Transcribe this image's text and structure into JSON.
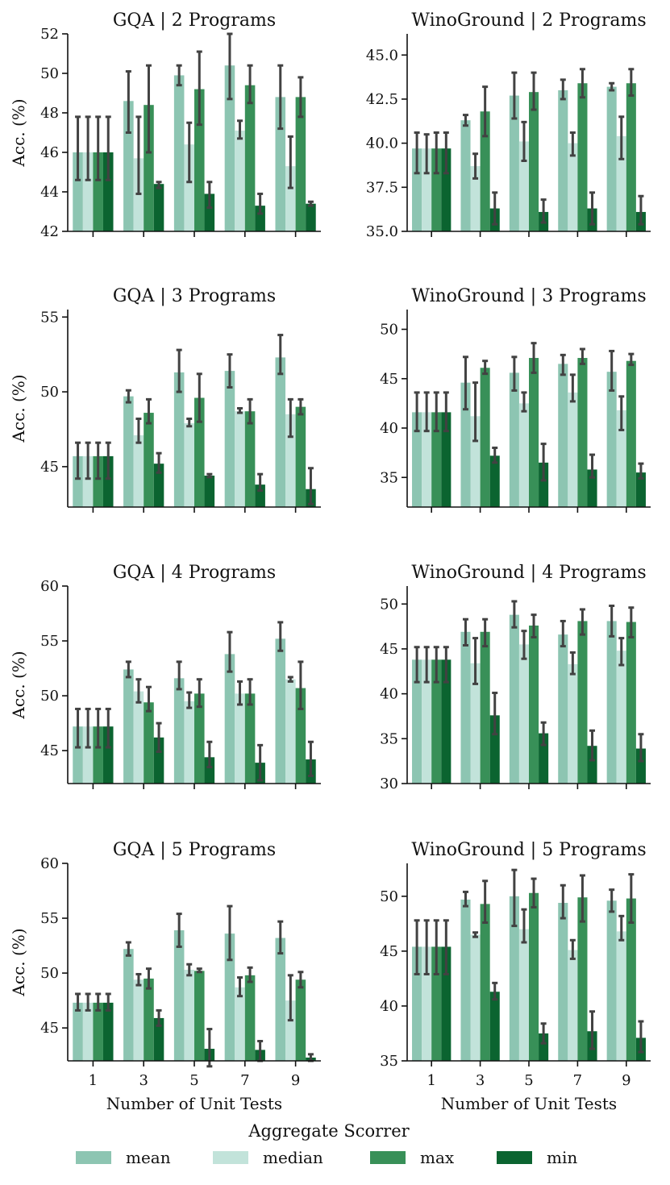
{
  "chart_data": {
    "type": "bar",
    "x_label": "Number of Unit Tests",
    "y_label": "Acc. (%)",
    "categories": [
      "1",
      "3",
      "5",
      "7",
      "9"
    ],
    "legend": {
      "title": "Aggregate Scorrer",
      "placement": "bottom",
      "entries": [
        "mean",
        "median",
        "max",
        "min"
      ]
    },
    "colors": {
      "mean": "#8dc5b2",
      "median": "#c2e3da",
      "max": "#389058",
      "min": "#0b6430",
      "error": "#424242"
    },
    "panels": [
      {
        "title": "GQA | 2 Programs",
        "ylim": [
          42,
          52
        ],
        "yticks": [
          42,
          44,
          46,
          48,
          50,
          52
        ],
        "ytick_labels": [
          "42",
          "44",
          "46",
          "48",
          "50",
          "52"
        ],
        "series": [
          {
            "name": "mean",
            "values": [
              46.0,
              48.6,
              49.9,
              50.4,
              48.8
            ],
            "err_low": [
              44.6,
              47.0,
              49.4,
              48.7,
              47.2
            ],
            "err_high": [
              47.8,
              50.1,
              50.4,
              52.0,
              50.4
            ]
          },
          {
            "name": "median",
            "values": [
              46.0,
              45.7,
              46.4,
              47.1,
              45.3
            ],
            "err_low": [
              44.6,
              43.9,
              44.5,
              46.7,
              44.2
            ],
            "err_high": [
              47.8,
              47.8,
              47.5,
              47.6,
              46.8
            ]
          },
          {
            "name": "max",
            "values": [
              46.0,
              48.4,
              49.2,
              49.4,
              48.8
            ],
            "err_low": [
              44.6,
              46.0,
              47.4,
              48.5,
              47.8
            ],
            "err_high": [
              47.8,
              50.4,
              51.1,
              50.4,
              49.8
            ]
          },
          {
            "name": "min",
            "values": [
              46.0,
              44.4,
              43.9,
              43.3,
              43.4
            ],
            "err_low": [
              44.6,
              44.2,
              43.2,
              42.9,
              43.3
            ],
            "err_high": [
              47.8,
              44.5,
              44.5,
              43.9,
              43.5
            ]
          }
        ]
      },
      {
        "title": "WinoGround | 2 Programs",
        "ylim": [
          35,
          46.2
        ],
        "yticks": [
          35,
          37.5,
          40,
          42.5,
          45
        ],
        "ytick_labels": [
          "35.0",
          "37.5",
          "40.0",
          "42.5",
          "45.0"
        ],
        "series": [
          {
            "name": "mean",
            "values": [
              39.7,
              41.3,
              42.7,
              43.0,
              43.2
            ],
            "err_low": [
              38.3,
              41.0,
              41.4,
              42.5,
              43.0
            ],
            "err_high": [
              40.6,
              41.6,
              44.0,
              43.6,
              43.4
            ]
          },
          {
            "name": "median",
            "values": [
              39.7,
              38.7,
              40.1,
              40.0,
              40.4
            ],
            "err_low": [
              38.3,
              38.0,
              39.0,
              39.3,
              39.1
            ],
            "err_high": [
              40.5,
              39.4,
              41.2,
              40.6,
              41.5
            ]
          },
          {
            "name": "max",
            "values": [
              39.7,
              41.8,
              42.9,
              43.4,
              43.4
            ],
            "err_low": [
              38.3,
              40.4,
              41.9,
              42.6,
              42.7
            ],
            "err_high": [
              40.6,
              43.2,
              44.0,
              44.2,
              44.2
            ]
          },
          {
            "name": "min",
            "values": [
              39.7,
              36.3,
              36.1,
              36.3,
              36.1
            ],
            "err_low": [
              38.3,
              35.4,
              35.5,
              35.4,
              35.4
            ],
            "err_high": [
              40.6,
              37.2,
              36.8,
              37.2,
              37.0
            ]
          }
        ]
      },
      {
        "title": "GQA | 3 Programs",
        "ylim": [
          42.3,
          55.5
        ],
        "yticks": [
          45,
          50,
          55
        ],
        "ytick_labels": [
          "45",
          "50",
          "55"
        ],
        "series": [
          {
            "name": "mean",
            "values": [
              45.7,
              49.7,
              51.3,
              51.4,
              52.3
            ],
            "err_low": [
              44.2,
              49.3,
              50.0,
              50.3,
              51.2
            ],
            "err_high": [
              46.6,
              50.1,
              52.8,
              52.5,
              53.8
            ]
          },
          {
            "name": "median",
            "values": [
              45.7,
              47.1,
              47.9,
              48.7,
              48.5
            ],
            "err_low": [
              44.2,
              46.6,
              47.7,
              48.6,
              47.0
            ],
            "err_high": [
              46.6,
              48.2,
              48.2,
              48.9,
              49.5
            ]
          },
          {
            "name": "max",
            "values": [
              45.7,
              48.6,
              49.6,
              48.7,
              49.0
            ],
            "err_low": [
              44.2,
              47.9,
              48.0,
              47.9,
              48.5
            ],
            "err_high": [
              46.6,
              49.5,
              51.2,
              49.5,
              49.5
            ]
          },
          {
            "name": "min",
            "values": [
              45.7,
              45.2,
              44.4,
              43.8,
              43.5
            ],
            "err_low": [
              44.2,
              44.6,
              44.3,
              43.4,
              42.5
            ],
            "err_high": [
              46.6,
              45.9,
              44.5,
              44.5,
              44.9
            ]
          }
        ]
      },
      {
        "title": "WinoGround | 3 Programs",
        "ylim": [
          32,
          52
        ],
        "yticks": [
          35,
          40,
          45,
          50
        ],
        "ytick_labels": [
          "35",
          "40",
          "45",
          "50"
        ],
        "series": [
          {
            "name": "mean",
            "values": [
              41.6,
              44.6,
              45.6,
              46.5,
              45.7
            ],
            "err_low": [
              39.7,
              41.9,
              43.8,
              45.4,
              43.8
            ],
            "err_high": [
              43.6,
              47.2,
              47.2,
              47.4,
              47.8
            ]
          },
          {
            "name": "median",
            "values": [
              41.6,
              41.2,
              42.5,
              43.6,
              41.8
            ],
            "err_low": [
              39.7,
              38.7,
              41.7,
              42.7,
              39.8
            ],
            "err_high": [
              43.6,
              44.6,
              43.6,
              45.4,
              43.2
            ]
          },
          {
            "name": "max",
            "values": [
              41.6,
              46.1,
              47.1,
              47.1,
              46.8
            ],
            "err_low": [
              39.7,
              45.5,
              45.6,
              46.5,
              46.4
            ],
            "err_high": [
              43.6,
              46.8,
              48.6,
              48.0,
              47.5
            ]
          },
          {
            "name": "min",
            "values": [
              41.6,
              37.2,
              36.5,
              35.8,
              35.5
            ],
            "err_low": [
              39.7,
              36.5,
              34.7,
              35.0,
              34.9
            ],
            "err_high": [
              43.6,
              38.0,
              38.4,
              37.3,
              36.4
            ]
          }
        ]
      },
      {
        "title": "GQA | 4 Programs",
        "ylim": [
          42,
          60
        ],
        "yticks": [
          45,
          50,
          55,
          60
        ],
        "ytick_labels": [
          "45",
          "50",
          "55",
          "60"
        ],
        "series": [
          {
            "name": "mean",
            "values": [
              47.2,
              52.4,
              51.6,
              53.8,
              55.2
            ],
            "err_low": [
              45.3,
              51.7,
              50.6,
              52.2,
              54.1
            ],
            "err_high": [
              48.8,
              53.1,
              53.1,
              55.8,
              56.7
            ]
          },
          {
            "name": "median",
            "values": [
              47.2,
              50.4,
              49.5,
              50.2,
              51.5
            ],
            "err_low": [
              45.3,
              49.4,
              48.9,
              49.2,
              51.3
            ],
            "err_high": [
              48.8,
              51.5,
              50.3,
              51.3,
              51.7
            ]
          },
          {
            "name": "max",
            "values": [
              47.2,
              49.4,
              50.2,
              50.2,
              50.7
            ],
            "err_low": [
              45.3,
              48.6,
              49.0,
              49.2,
              48.8
            ],
            "err_high": [
              48.8,
              50.8,
              51.5,
              51.5,
              53.1
            ]
          },
          {
            "name": "min",
            "values": [
              47.2,
              46.2,
              44.4,
              43.9,
              44.2
            ],
            "err_low": [
              45.3,
              44.9,
              43.5,
              42.3,
              42.7
            ],
            "err_high": [
              48.8,
              47.5,
              45.8,
              45.5,
              45.8
            ]
          }
        ]
      },
      {
        "title": "WinoGround | 4 Programs",
        "ylim": [
          30,
          52
        ],
        "yticks": [
          30,
          35,
          40,
          45,
          50
        ],
        "ytick_labels": [
          "30",
          "35",
          "40",
          "45",
          "50"
        ],
        "series": [
          {
            "name": "mean",
            "values": [
              43.8,
              46.9,
              48.8,
              46.6,
              48.1
            ],
            "err_low": [
              41.3,
              45.4,
              47.4,
              45.3,
              46.4
            ],
            "err_high": [
              45.2,
              48.3,
              50.3,
              48.1,
              49.8
            ]
          },
          {
            "name": "median",
            "values": [
              43.8,
              43.4,
              45.5,
              43.3,
              44.8
            ],
            "err_low": [
              41.3,
              41.1,
              43.9,
              42.2,
              43.2
            ],
            "err_high": [
              45.2,
              46.2,
              47.0,
              44.6,
              46.2
            ]
          },
          {
            "name": "max",
            "values": [
              43.8,
              46.9,
              47.6,
              48.1,
              48.0
            ],
            "err_low": [
              41.3,
              45.3,
              46.3,
              46.6,
              46.3
            ],
            "err_high": [
              45.2,
              48.3,
              48.8,
              49.4,
              49.6
            ]
          },
          {
            "name": "min",
            "values": [
              43.8,
              37.6,
              35.6,
              34.2,
              33.9
            ],
            "err_low": [
              41.3,
              35.5,
              34.3,
              32.6,
              32.5
            ],
            "err_high": [
              45.2,
              40.1,
              36.8,
              35.9,
              35.5
            ]
          }
        ]
      },
      {
        "title": "GQA | 5 Programs",
        "ylim": [
          42,
          60
        ],
        "yticks": [
          45,
          50,
          55,
          60
        ],
        "ytick_labels": [
          "45",
          "50",
          "55",
          "60"
        ],
        "series": [
          {
            "name": "mean",
            "values": [
              47.3,
              52.2,
              53.9,
              53.6,
              53.2
            ],
            "err_low": [
              46.6,
              51.6,
              52.4,
              51.2,
              51.8
            ],
            "err_high": [
              48.1,
              52.8,
              55.4,
              56.1,
              54.7
            ]
          },
          {
            "name": "median",
            "values": [
              47.3,
              49.4,
              50.3,
              48.7,
              47.5
            ],
            "err_low": [
              46.6,
              48.9,
              49.8,
              47.9,
              45.7
            ],
            "err_high": [
              48.1,
              49.9,
              50.8,
              49.6,
              49.8
            ]
          },
          {
            "name": "max",
            "values": [
              47.3,
              49.5,
              50.2,
              49.8,
              49.4
            ],
            "err_low": [
              46.6,
              48.6,
              50.1,
              49.2,
              48.7
            ],
            "err_high": [
              48.1,
              50.4,
              50.4,
              50.5,
              50.1
            ]
          },
          {
            "name": "min",
            "values": [
              47.3,
              45.9,
              43.1,
              43.0,
              42.3
            ],
            "err_low": [
              46.6,
              45.2,
              41.5,
              42.0,
              42.0
            ],
            "err_high": [
              48.1,
              46.6,
              44.9,
              43.8,
              42.6
            ]
          }
        ]
      },
      {
        "title": "WinoGround | 5 Programs",
        "ylim": [
          35,
          53
        ],
        "yticks": [
          35,
          40,
          45,
          50
        ],
        "ytick_labels": [
          "35",
          "40",
          "45",
          "50"
        ],
        "series": [
          {
            "name": "mean",
            "values": [
              45.4,
              49.7,
              50.0,
              49.4,
              49.6
            ],
            "err_low": [
              42.9,
              49.1,
              47.3,
              48.0,
              48.6
            ],
            "err_high": [
              47.8,
              50.4,
              52.4,
              51.0,
              50.6
            ]
          },
          {
            "name": "median",
            "values": [
              45.4,
              46.5,
              47.0,
              45.1,
              46.8
            ],
            "err_low": [
              42.9,
              46.3,
              45.8,
              44.3,
              46.0
            ],
            "err_high": [
              47.8,
              46.7,
              48.8,
              46.0,
              48.2
            ]
          },
          {
            "name": "max",
            "values": [
              45.4,
              49.3,
              50.3,
              49.9,
              49.8
            ],
            "err_low": [
              42.9,
              47.6,
              49.0,
              47.7,
              47.6
            ],
            "err_high": [
              47.8,
              51.4,
              51.6,
              51.9,
              52.0
            ]
          },
          {
            "name": "min",
            "values": [
              45.4,
              41.3,
              37.5,
              37.7,
              37.1
            ],
            "err_low": [
              42.9,
              40.6,
              36.6,
              36.1,
              35.8
            ],
            "err_high": [
              47.8,
              42.1,
              38.4,
              39.5,
              38.6
            ]
          }
        ]
      }
    ]
  }
}
